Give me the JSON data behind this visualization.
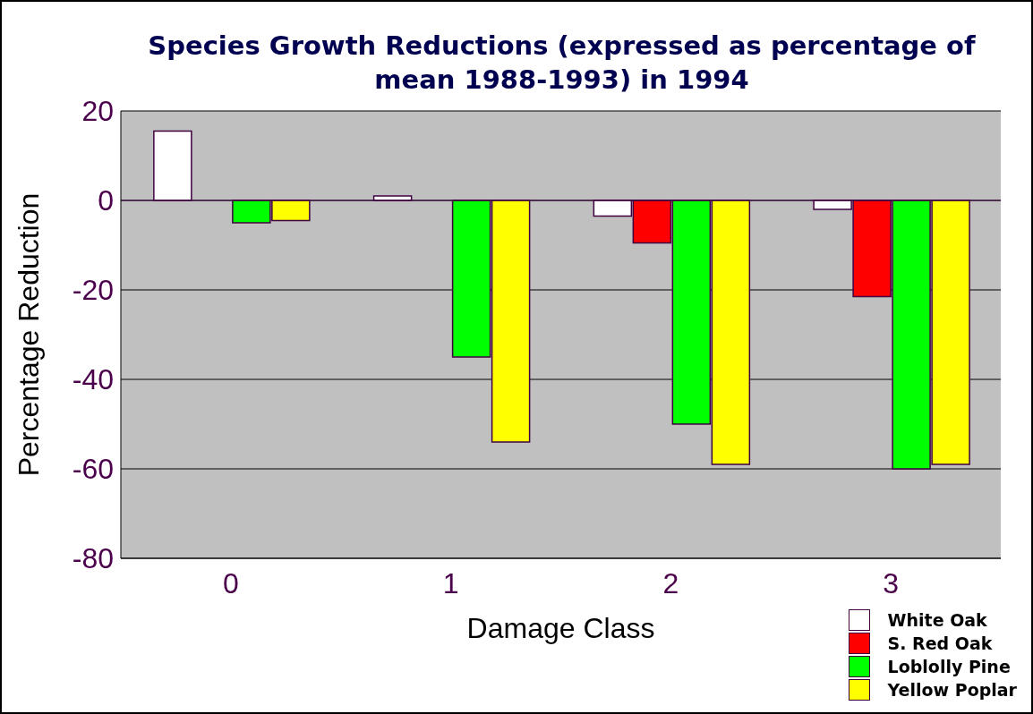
{
  "chart_data": {
    "type": "bar",
    "title": "Species Growth Reductions (expressed as percentage of mean 1988-1993) in 1994",
    "xlabel": "Damage Class",
    "ylabel": "Percentage Reduction",
    "categories": [
      "0",
      "1",
      "2",
      "3"
    ],
    "series": [
      {
        "name": "White Oak",
        "color": "#ffffff",
        "values": [
          15.5,
          1,
          -3.5,
          -2
        ]
      },
      {
        "name": "S. Red Oak",
        "color": "#ff0000",
        "values": [
          0,
          0,
          -9.5,
          -21.5
        ]
      },
      {
        "name": "Loblolly Pine",
        "color": "#00ff00",
        "values": [
          -5,
          -35,
          -50,
          -60
        ]
      },
      {
        "name": "Yellow Poplar",
        "color": "#ffff00",
        "values": [
          -4.5,
          -54,
          -59,
          -59
        ]
      }
    ],
    "ylim": [
      -80,
      20
    ],
    "yticks": [
      -80,
      -60,
      -40,
      -20,
      0,
      20
    ],
    "grid": "y",
    "legend": "bottom right"
  }
}
